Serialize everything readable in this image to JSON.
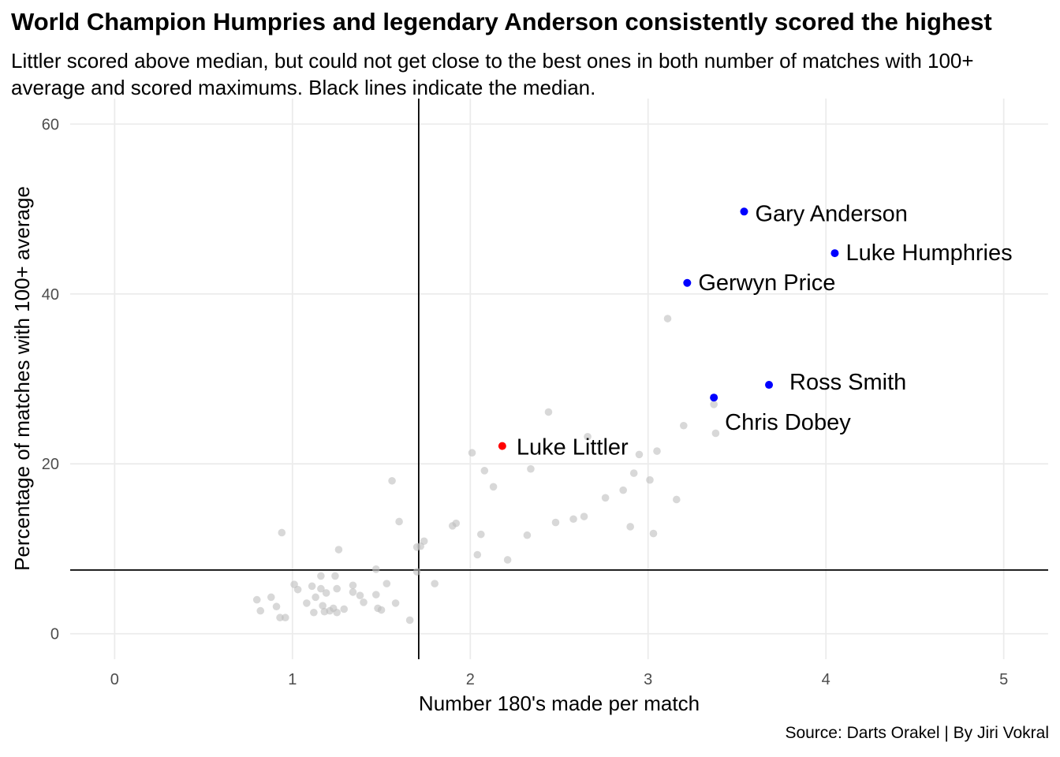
{
  "chart_data": {
    "type": "scatter",
    "title": "World Champion Humpries and legendary Anderson consistently scored the highest",
    "subtitle": "Littler scored above median, but could not get close to the best ones in both number of matches with 100+ average and scored maximums. Black lines indicate the median.",
    "caption": "Source: Darts Orakel | By Jiri Vokral",
    "xlabel": "Number 180's made per match",
    "ylabel": "Percentage of matches with 100+ average",
    "xlim": [
      -0.25,
      5.25
    ],
    "ylim": [
      -3,
      63
    ],
    "x_ticks": [
      "0",
      "1",
      "2",
      "3",
      "4",
      "5"
    ],
    "y_ticks": [
      "0",
      "20",
      "40",
      "60"
    ],
    "grid": true,
    "median_x": 1.71,
    "median_y": 7.5,
    "colors": {
      "highlight": "#0000ff",
      "littler": "#ff0000",
      "others": "#bebebe",
      "median": "#000000"
    },
    "highlighted": [
      {
        "name": "Gary Anderson",
        "x": 3.54,
        "y": 49.7,
        "group": "highlight"
      },
      {
        "name": "Luke Humphries",
        "x": 4.05,
        "y": 44.8,
        "group": "highlight"
      },
      {
        "name": "Gerwyn Price",
        "x": 3.22,
        "y": 41.3,
        "group": "highlight"
      },
      {
        "name": "Ross Smith",
        "x": 3.68,
        "y": 29.3,
        "group": "highlight"
      },
      {
        "name": "Chris Dobey",
        "x": 3.37,
        "y": 27.8,
        "group": "highlight"
      },
      {
        "name": "Luke Littler",
        "x": 2.18,
        "y": 22.1,
        "group": "littler"
      }
    ],
    "others": [
      [
        3.11,
        37.1
      ],
      [
        2.44,
        26.1
      ],
      [
        3.37,
        27.0
      ],
      [
        3.38,
        23.6
      ],
      [
        3.2,
        24.5
      ],
      [
        2.66,
        23.2
      ],
      [
        2.01,
        21.3
      ],
      [
        2.95,
        21.1
      ],
      [
        3.05,
        21.5
      ],
      [
        2.08,
        19.2
      ],
      [
        2.34,
        19.4
      ],
      [
        2.92,
        18.9
      ],
      [
        1.56,
        18.0
      ],
      [
        3.01,
        18.1
      ],
      [
        2.13,
        17.3
      ],
      [
        2.86,
        16.9
      ],
      [
        2.76,
        16.0
      ],
      [
        3.16,
        15.8
      ],
      [
        2.64,
        13.8
      ],
      [
        2.58,
        13.5
      ],
      [
        2.48,
        13.1
      ],
      [
        2.9,
        12.6
      ],
      [
        1.6,
        13.2
      ],
      [
        1.9,
        12.7
      ],
      [
        1.92,
        13.0
      ],
      [
        0.94,
        11.9
      ],
      [
        2.06,
        11.7
      ],
      [
        2.32,
        11.6
      ],
      [
        3.03,
        11.8
      ],
      [
        1.74,
        10.9
      ],
      [
        1.7,
        10.2
      ],
      [
        1.72,
        10.3
      ],
      [
        1.26,
        9.9
      ],
      [
        2.04,
        9.3
      ],
      [
        2.21,
        8.7
      ],
      [
        1.47,
        7.6
      ],
      [
        1.7,
        7.3
      ],
      [
        1.16,
        6.8
      ],
      [
        1.24,
        6.8
      ],
      [
        1.8,
        5.9
      ],
      [
        1.01,
        5.8
      ],
      [
        1.03,
        5.2
      ],
      [
        1.11,
        5.6
      ],
      [
        1.16,
        5.3
      ],
      [
        1.25,
        5.3
      ],
      [
        1.34,
        5.7
      ],
      [
        1.34,
        4.9
      ],
      [
        1.38,
        4.5
      ],
      [
        1.47,
        4.6
      ],
      [
        1.53,
        5.9
      ],
      [
        0.88,
        4.3
      ],
      [
        1.13,
        4.3
      ],
      [
        1.19,
        4.8
      ],
      [
        0.8,
        4.0
      ],
      [
        0.91,
        3.2
      ],
      [
        1.08,
        3.6
      ],
      [
        1.17,
        3.3
      ],
      [
        1.23,
        3.0
      ],
      [
        1.4,
        3.7
      ],
      [
        1.58,
        3.6
      ],
      [
        0.82,
        2.7
      ],
      [
        1.12,
        2.5
      ],
      [
        1.18,
        2.6
      ],
      [
        1.21,
        2.7
      ],
      [
        1.25,
        2.5
      ],
      [
        1.29,
        2.9
      ],
      [
        1.48,
        3.0
      ],
      [
        1.5,
        2.8
      ],
      [
        0.93,
        1.9
      ],
      [
        0.96,
        1.9
      ],
      [
        1.66,
        1.6
      ]
    ]
  }
}
